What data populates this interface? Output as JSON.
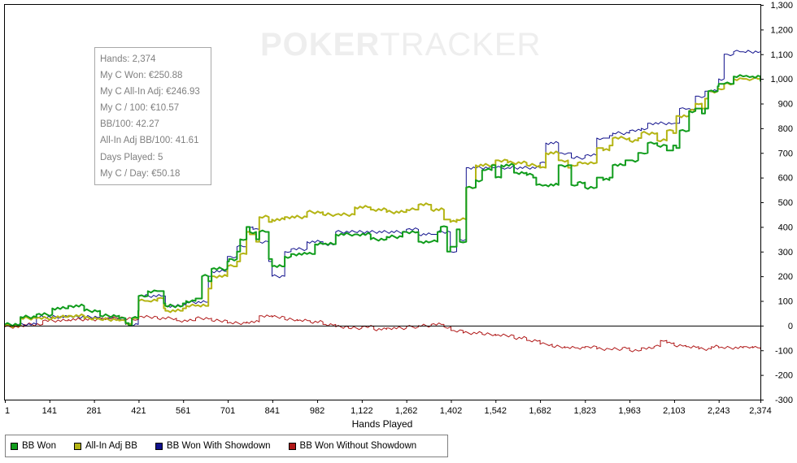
{
  "watermark": {
    "part1": "POKER",
    "part2": "TRACKER"
  },
  "info_box": {
    "lines": [
      "Hands: 2,374",
      "My C Won: €250.88",
      "My C All-In Adj: €246.93",
      "My C / 100: €10.57",
      "BB/100: 42.27",
      "All-In Adj BB/100: 41.61",
      "Days Played: 5",
      "My C / Day: €50.18"
    ]
  },
  "chart_data": {
    "type": "line",
    "xlabel": "Hands Played",
    "ylabel": "",
    "xlim": [
      1,
      2374
    ],
    "ylim": [
      -300,
      1300
    ],
    "x_ticks": [
      1,
      141,
      281,
      421,
      561,
      701,
      841,
      982,
      1122,
      1262,
      1402,
      1542,
      1682,
      1823,
      1963,
      2103,
      2243,
      2374
    ],
    "x_tick_labels": [
      "1",
      "141",
      "281",
      "421",
      "561",
      "701",
      "841",
      "982",
      "1,122",
      "1,262",
      "1,402",
      "1,542",
      "1,682",
      "1,823",
      "1,963",
      "2,103",
      "2,243",
      "2,374"
    ],
    "y_ticks": [
      -300,
      -200,
      -100,
      0,
      100,
      200,
      300,
      400,
      500,
      600,
      700,
      800,
      900,
      1000,
      1100,
      1200,
      1300
    ],
    "y_tick_labels": [
      "-300",
      "-200",
      "-100",
      "0",
      "100",
      "200",
      "300",
      "400",
      "500",
      "600",
      "700",
      "800",
      "900",
      "1,000",
      "1,100",
      "1,200",
      "1,300"
    ],
    "grid": false,
    "legend_position": "bottom-left",
    "series": [
      {
        "name": "BB Won",
        "color": "#109c1c",
        "width": 2,
        "x": [
          1,
          50,
          100,
          150,
          200,
          250,
          300,
          360,
          380,
          390,
          400,
          420,
          421,
          450,
          480,
          500,
          505,
          560,
          570,
          600,
          620,
          640,
          650,
          700,
          705,
          730,
          740,
          760,
          770,
          790,
          800,
          830,
          840,
          880,
          900,
          950,
          975,
          1000,
          1040,
          1100,
          1150,
          1200,
          1250,
          1262,
          1300,
          1340,
          1360,
          1370,
          1390,
          1400,
          1420,
          1430,
          1450,
          1480,
          1500,
          1510,
          1530,
          1542,
          1560,
          1600,
          1640,
          1660,
          1670,
          1700,
          1740,
          1770,
          1780,
          1800,
          1823,
          1860,
          1880,
          1900,
          1910,
          1950,
          1963,
          1990,
          2000,
          2020,
          2050,
          2080,
          2100,
          2110,
          2120,
          2150,
          2170,
          2190,
          2200,
          2210,
          2240,
          2243,
          2260,
          2290,
          2320,
          2350,
          2374
        ],
        "y": [
          5,
          35,
          45,
          70,
          80,
          60,
          40,
          30,
          10,
          0,
          30,
          60,
          120,
          140,
          140,
          90,
          80,
          90,
          100,
          110,
          200,
          180,
          230,
          260,
          270,
          300,
          350,
          400,
          380,
          350,
          380,
          270,
          240,
          280,
          290,
          290,
          330,
          330,
          370,
          370,
          350,
          360,
          380,
          380,
          340,
          340,
          380,
          400,
          300,
          320,
          390,
          340,
          560,
          590,
          630,
          630,
          650,
          600,
          650,
          620,
          610,
          600,
          570,
          570,
          650,
          650,
          570,
          580,
          560,
          600,
          590,
          600,
          650,
          670,
          670,
          700,
          700,
          740,
          730,
          710,
          730,
          720,
          790,
          870,
          880,
          860,
          880,
          950,
          970,
          980,
          980,
          1010,
          1010,
          1010,
          990
        ]
      },
      {
        "name": "All-In Adj BB",
        "color": "#b4b414",
        "width": 2,
        "x": [
          1,
          50,
          100,
          150,
          200,
          250,
          300,
          360,
          380,
          400,
          421,
          450,
          480,
          500,
          505,
          560,
          570,
          600,
          640,
          650,
          700,
          730,
          740,
          760,
          770,
          790,
          800,
          830,
          840,
          880,
          950,
          1000,
          1040,
          1100,
          1150,
          1200,
          1262,
          1300,
          1340,
          1380,
          1400,
          1420,
          1450,
          1480,
          1542,
          1580,
          1640,
          1682,
          1700,
          1740,
          1770,
          1780,
          1800,
          1823,
          1860,
          1880,
          1900,
          1910,
          1963,
          1990,
          2000,
          2050,
          2080,
          2100,
          2110,
          2150,
          2170,
          2190,
          2200,
          2210,
          2240,
          2243,
          2260,
          2290,
          2320,
          2350,
          2374
        ],
        "y": [
          0,
          30,
          30,
          35,
          40,
          30,
          25,
          20,
          10,
          30,
          100,
          100,
          110,
          70,
          60,
          70,
          80,
          80,
          150,
          200,
          240,
          260,
          290,
          380,
          370,
          340,
          440,
          420,
          430,
          440,
          460,
          450,
          450,
          480,
          470,
          460,
          470,
          490,
          470,
          430,
          420,
          430,
          560,
          650,
          670,
          660,
          650,
          640,
          700,
          670,
          640,
          650,
          660,
          660,
          720,
          710,
          730,
          760,
          750,
          760,
          780,
          750,
          790,
          780,
          850,
          870,
          900,
          880,
          920,
          950,
          960,
          960,
          980,
          1000,
          1000,
          1000,
          990
        ]
      },
      {
        "name": "BB Won With Showdown",
        "color": "#10108c",
        "width": 1,
        "x": [
          1,
          100,
          200,
          300,
          360,
          380,
          420,
          421,
          500,
          505,
          560,
          570,
          640,
          650,
          700,
          730,
          760,
          780,
          800,
          830,
          840,
          880,
          900,
          950,
          1000,
          1040,
          1100,
          1262,
          1300,
          1340,
          1360,
          1400,
          1420,
          1430,
          1450,
          1542,
          1580,
          1682,
          1700,
          1740,
          1770,
          1780,
          1823,
          1860,
          1880,
          1900,
          1910,
          1963,
          2000,
          2020,
          2103,
          2110,
          2120,
          2150,
          2170,
          2200,
          2210,
          2240,
          2243,
          2260,
          2290,
          2320,
          2374
        ],
        "y": [
          5,
          35,
          35,
          30,
          25,
          5,
          40,
          120,
          120,
          80,
          85,
          95,
          200,
          220,
          280,
          320,
          400,
          390,
          340,
          260,
          200,
          300,
          310,
          340,
          330,
          380,
          380,
          390,
          370,
          370,
          380,
          300,
          390,
          350,
          640,
          640,
          640,
          660,
          740,
          700,
          700,
          680,
          690,
          760,
          760,
          770,
          780,
          790,
          800,
          820,
          820,
          820,
          880,
          880,
          930,
          950,
          950,
          970,
          1000,
          1100,
          1110,
          1110,
          1110
        ]
      },
      {
        "name": "BB Won Without Showdown",
        "color": "#b01818",
        "width": 1,
        "x": [
          1,
          60,
          120,
          200,
          300,
          360,
          400,
          421,
          480,
          540,
          600,
          650,
          700,
          760,
          800,
          840,
          880,
          920,
          960,
          1000,
          1040,
          1080,
          1122,
          1160,
          1200,
          1262,
          1300,
          1340,
          1380,
          1402,
          1440,
          1500,
          1542,
          1600,
          1640,
          1682,
          1720,
          1760,
          1800,
          1823,
          1860,
          1900,
          1940,
          1963,
          2000,
          2040,
          2060,
          2080,
          2103,
          2140,
          2180,
          2220,
          2243,
          2280,
          2320,
          2350,
          2374
        ],
        "y": [
          -5,
          5,
          20,
          25,
          30,
          30,
          25,
          35,
          30,
          20,
          30,
          20,
          10,
          15,
          40,
          35,
          25,
          20,
          15,
          5,
          -5,
          -10,
          -5,
          -15,
          -10,
          -5,
          0,
          5,
          -5,
          -20,
          -30,
          -35,
          -40,
          -50,
          -60,
          -75,
          -85,
          -90,
          -90,
          -85,
          -95,
          -95,
          -90,
          -100,
          -90,
          -85,
          -60,
          -70,
          -80,
          -85,
          -95,
          -85,
          -90,
          -90,
          -85,
          -90,
          -95
        ]
      }
    ]
  }
}
